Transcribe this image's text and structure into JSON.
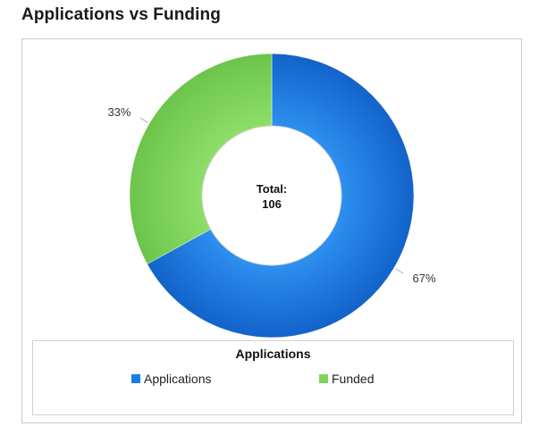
{
  "page_title": "Applications vs Funding",
  "chart_data": {
    "type": "pie",
    "variant": "donut",
    "title": "Applications vs Funding",
    "center_label": {
      "line1": "Total:",
      "line2": "106"
    },
    "slices": [
      {
        "name": "Applications",
        "percent": 67,
        "label": "67%",
        "color": "#1a7ee8"
      },
      {
        "name": "Funded",
        "percent": 33,
        "label": "33%",
        "color": "#7dd65a"
      }
    ],
    "legend": {
      "title": "Applications",
      "placement": "bottom",
      "items": [
        {
          "label": "Applications",
          "color": "#1a7ee8"
        },
        {
          "label": "Funded",
          "color": "#7dd65a"
        }
      ]
    }
  }
}
